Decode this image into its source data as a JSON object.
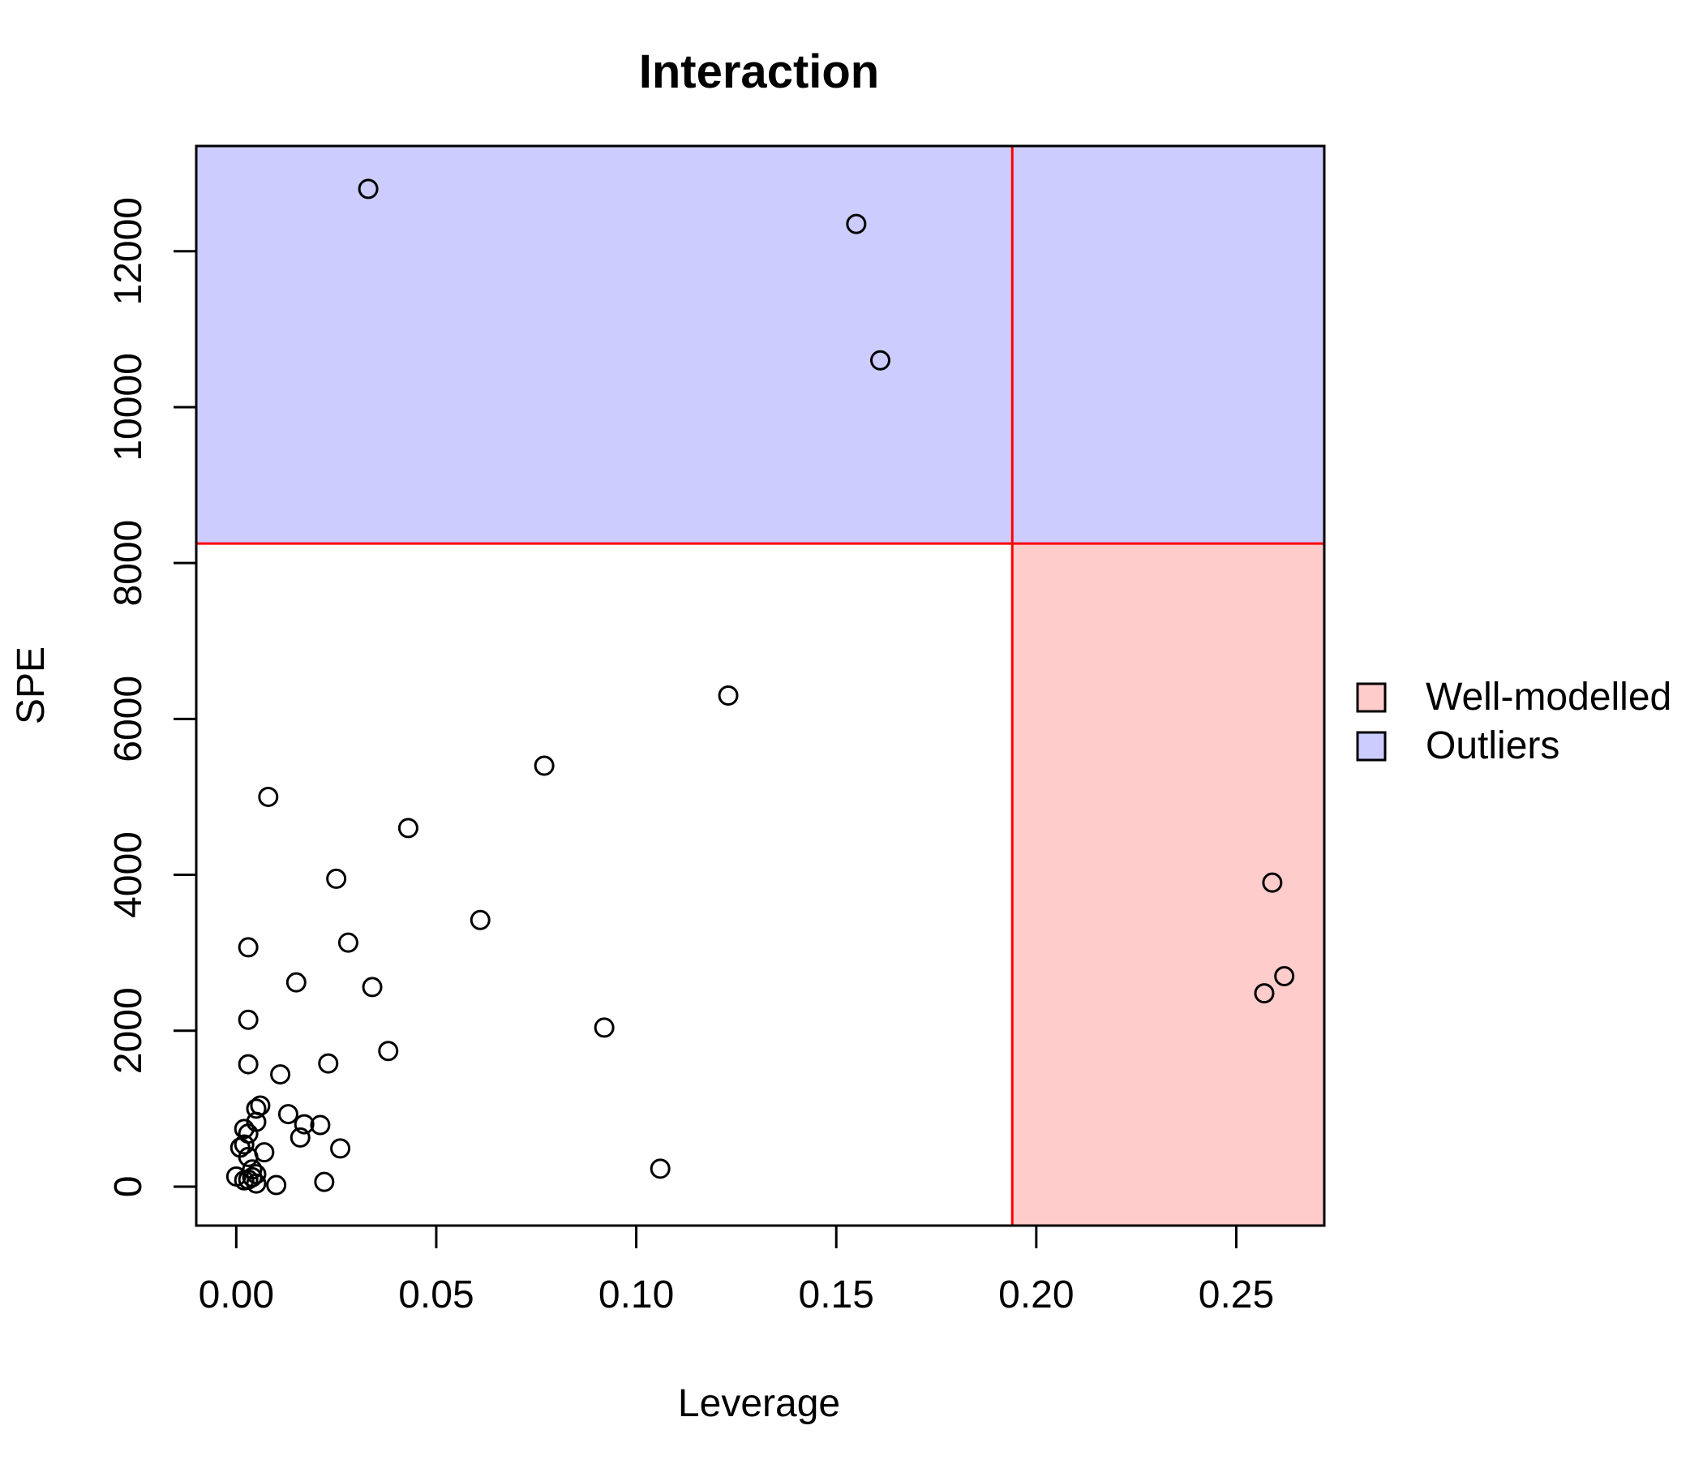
{
  "chart_data": {
    "type": "scatter",
    "title": "Interaction",
    "xlabel": "Leverage",
    "ylabel": "SPE",
    "xlim": [
      -0.01,
      0.272
    ],
    "ylim": [
      -500,
      13350
    ],
    "x_ticks": [
      0.0,
      0.05,
      0.1,
      0.15,
      0.2,
      0.25
    ],
    "x_tick_labels": [
      "0.00",
      "0.05",
      "0.10",
      "0.15",
      "0.20",
      "0.25"
    ],
    "y_ticks": [
      0,
      2000,
      4000,
      6000,
      8000,
      10000,
      12000
    ],
    "y_tick_labels": [
      "0",
      "2000",
      "4000",
      "6000",
      "8000",
      "10000",
      "12000"
    ],
    "thresholds": {
      "leverage": 0.194,
      "spe": 8250
    },
    "colors": {
      "outliers": "#ccccff",
      "well_modelled": "#ffcccc",
      "threshold_line": "#ff0000",
      "point_stroke": "#000000"
    },
    "legend": {
      "position": "right",
      "entries": [
        {
          "label": "Well-modelled",
          "color": "#ffcccc"
        },
        {
          "label": "Outliers",
          "color": "#ccccff"
        }
      ]
    },
    "points": [
      {
        "x": 0.033,
        "y": 12800
      },
      {
        "x": 0.155,
        "y": 12350
      },
      {
        "x": 0.161,
        "y": 10600
      },
      {
        "x": 0.123,
        "y": 6300
      },
      {
        "x": 0.077,
        "y": 5400
      },
      {
        "x": 0.008,
        "y": 5000
      },
      {
        "x": 0.043,
        "y": 4600
      },
      {
        "x": 0.025,
        "y": 3950
      },
      {
        "x": 0.061,
        "y": 3420
      },
      {
        "x": 0.028,
        "y": 3130
      },
      {
        "x": 0.003,
        "y": 3070
      },
      {
        "x": 0.015,
        "y": 2620
      },
      {
        "x": 0.034,
        "y": 2560
      },
      {
        "x": 0.003,
        "y": 2140
      },
      {
        "x": 0.092,
        "y": 2040
      },
      {
        "x": 0.038,
        "y": 1740
      },
      {
        "x": 0.003,
        "y": 1570
      },
      {
        "x": 0.023,
        "y": 1580
      },
      {
        "x": 0.011,
        "y": 1440
      },
      {
        "x": 0.006,
        "y": 1040
      },
      {
        "x": 0.005,
        "y": 1000
      },
      {
        "x": 0.013,
        "y": 930
      },
      {
        "x": 0.005,
        "y": 830
      },
      {
        "x": 0.017,
        "y": 800
      },
      {
        "x": 0.021,
        "y": 790
      },
      {
        "x": 0.002,
        "y": 740
      },
      {
        "x": 0.003,
        "y": 680
      },
      {
        "x": 0.016,
        "y": 630
      },
      {
        "x": 0.002,
        "y": 540
      },
      {
        "x": 0.001,
        "y": 500
      },
      {
        "x": 0.026,
        "y": 490
      },
      {
        "x": 0.007,
        "y": 440
      },
      {
        "x": 0.003,
        "y": 380
      },
      {
        "x": 0.106,
        "y": 230
      },
      {
        "x": 0.004,
        "y": 220
      },
      {
        "x": 0.005,
        "y": 160
      },
      {
        "x": 0.0,
        "y": 130
      },
      {
        "x": 0.004,
        "y": 120
      },
      {
        "x": 0.003,
        "y": 90
      },
      {
        "x": 0.002,
        "y": 80
      },
      {
        "x": 0.022,
        "y": 60
      },
      {
        "x": 0.005,
        "y": 40
      },
      {
        "x": 0.01,
        "y": 20
      },
      {
        "x": 0.259,
        "y": 3900
      },
      {
        "x": 0.262,
        "y": 2700
      },
      {
        "x": 0.257,
        "y": 2480
      }
    ]
  }
}
